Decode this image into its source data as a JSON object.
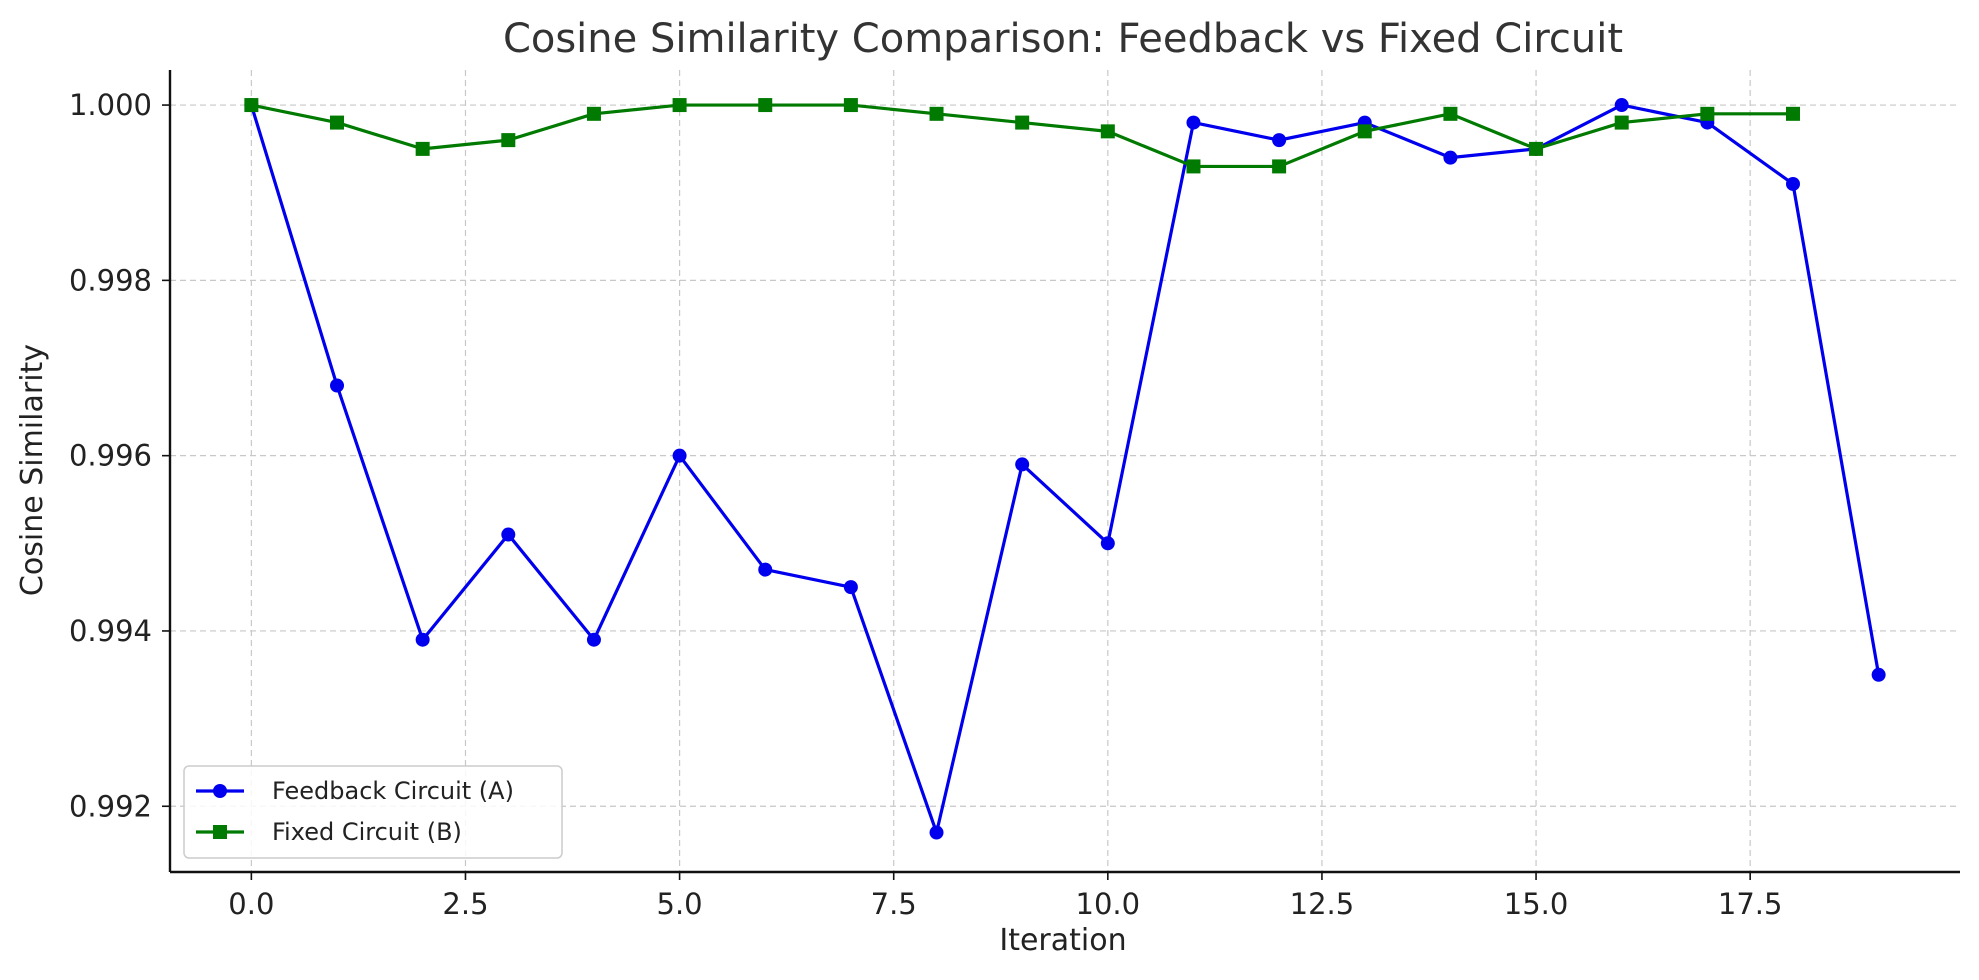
{
  "chart_data": {
    "type": "line",
    "title": "Cosine Similarity Comparison: Feedback vs Fixed Circuit",
    "xlabel": "Iteration",
    "ylabel": "Cosine Similarity",
    "xlim": [
      -0.95,
      19.95
    ],
    "ylim": [
      0.99125,
      1.0004
    ],
    "xticks": [
      0.0,
      2.5,
      5.0,
      7.5,
      10.0,
      12.5,
      15.0,
      17.5
    ],
    "xtick_labels": [
      "0.0",
      "2.5",
      "5.0",
      "7.5",
      "10.0",
      "12.5",
      "15.0",
      "17.5"
    ],
    "yticks": [
      0.992,
      0.994,
      0.996,
      0.998,
      1.0
    ],
    "ytick_labels": [
      "0.992",
      "0.994",
      "0.996",
      "0.998",
      "1.000"
    ],
    "grid": true,
    "legend_position": "lower-left",
    "series": [
      {
        "name": "Feedback Circuit (A)",
        "color": "#0000ee",
        "marker": "circle",
        "x": [
          0,
          1,
          2,
          3,
          4,
          5,
          6,
          7,
          8,
          9,
          10,
          11,
          12,
          13,
          14,
          15,
          16,
          17,
          18,
          19
        ],
        "y": [
          1.0,
          0.9968,
          0.9939,
          0.9951,
          0.9939,
          0.996,
          0.9947,
          0.9945,
          0.9917,
          0.9959,
          0.995,
          0.9998,
          0.9996,
          0.9998,
          0.9994,
          0.9995,
          1.0,
          0.9998,
          0.9991,
          0.9935
        ]
      },
      {
        "name": "Fixed Circuit (B)",
        "color": "#007a00",
        "marker": "square",
        "x": [
          0,
          1,
          2,
          3,
          4,
          5,
          6,
          7,
          8,
          9,
          10,
          11,
          12,
          13,
          14,
          15,
          16,
          17,
          18
        ],
        "y": [
          1.0,
          0.9998,
          0.9995,
          0.9996,
          0.9999,
          1.0,
          1.0,
          1.0,
          0.9999,
          0.9998,
          0.9997,
          0.9993,
          0.9993,
          0.9997,
          0.9999,
          0.9995,
          0.9998,
          0.9999,
          0.9999
        ]
      }
    ]
  }
}
